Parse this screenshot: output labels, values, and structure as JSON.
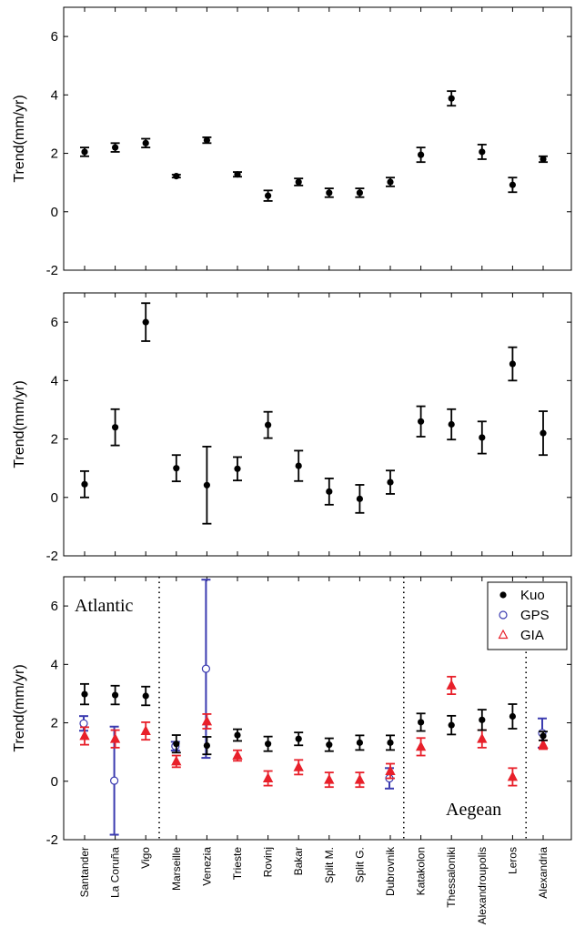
{
  "chart_data": [
    {
      "type": "scatter",
      "ylabel": "Trend(mm/yr)",
      "ylim": [
        -2,
        7
      ],
      "yticks": [
        -2,
        0,
        2,
        4,
        6
      ],
      "grid": false,
      "categories": [
        "Santander",
        "La Coruña",
        "Vigo",
        "Marseille",
        "Venezia",
        "Trieste",
        "Rovinj",
        "Bakar",
        "Split M.",
        "Split G.",
        "Dubrovnik",
        "Katakolon",
        "Thessaloniki",
        "Alexandroupolis",
        "Leros",
        "Alexandria"
      ],
      "series": [
        {
          "values": [
            2.05,
            2.2,
            2.35,
            1.22,
            2.45,
            1.28,
            0.55,
            1.02,
            0.65,
            0.65,
            1.02,
            1.95,
            3.88,
            2.05,
            0.92,
            1.8
          ],
          "errors": [
            0.15,
            0.15,
            0.15,
            0.05,
            0.1,
            0.08,
            0.18,
            0.12,
            0.15,
            0.15,
            0.15,
            0.25,
            0.25,
            0.25,
            0.25,
            0.1
          ]
        }
      ]
    },
    {
      "type": "scatter",
      "ylabel": "Trend(mm/yr)",
      "ylim": [
        -2,
        7
      ],
      "yticks": [
        -2,
        0,
        2,
        4,
        6
      ],
      "grid": false,
      "categories": [
        "Santander",
        "La Coruña",
        "Vigo",
        "Marseille",
        "Venezia",
        "Trieste",
        "Rovinj",
        "Bakar",
        "Split M.",
        "Split G.",
        "Dubrovnik",
        "Katakolon",
        "Thessaloniki",
        "Alexandroupolis",
        "Leros",
        "Alexandria"
      ],
      "series": [
        {
          "values": [
            0.45,
            2.4,
            6.0,
            1.0,
            0.42,
            0.98,
            2.48,
            1.08,
            0.2,
            -0.05,
            0.52,
            2.6,
            2.5,
            2.05,
            4.57,
            2.2
          ],
          "errors": [
            0.45,
            0.62,
            0.65,
            0.45,
            1.32,
            0.4,
            0.45,
            0.52,
            0.45,
            0.48,
            0.4,
            0.52,
            0.52,
            0.55,
            0.57,
            0.75
          ]
        }
      ]
    },
    {
      "type": "scatter",
      "ylabel": "Trend(mm/yr)",
      "ylim": [
        -2,
        7
      ],
      "yticks": [
        -2,
        0,
        2,
        4,
        6
      ],
      "grid": false,
      "categories": [
        "Santander",
        "La Coruña",
        "Vigo",
        "Marseille",
        "Venezia",
        "Trieste",
        "Rovinj",
        "Bakar",
        "Split M.",
        "Split G.",
        "Dubrovnik",
        "Katakolon",
        "Thessaloniki",
        "Alexandroupolis",
        "Leros",
        "Alexandria"
      ],
      "legend": {
        "position": "top-right",
        "entries": [
          "Kuo",
          "GPS",
          "GIA"
        ]
      },
      "annotations": [
        "Atlantic",
        "Aegean"
      ],
      "region_dividers_after": [
        "Vigo",
        "Dubrovnik",
        "Leros"
      ],
      "series": [
        {
          "name": "Kuo",
          "color": "#000000",
          "marker": "dot",
          "values": [
            2.98,
            2.95,
            2.92,
            1.28,
            1.22,
            1.58,
            1.28,
            1.45,
            1.25,
            1.32,
            1.32,
            2.02,
            1.92,
            2.1,
            2.22,
            1.55
          ],
          "errors": [
            0.35,
            0.32,
            0.32,
            0.3,
            0.3,
            0.2,
            0.25,
            0.22,
            0.22,
            0.25,
            0.25,
            0.3,
            0.32,
            0.35,
            0.42,
            0.15
          ]
        },
        {
          "name": "GPS",
          "color": "#3b3bb0",
          "marker": "circle",
          "values": [
            1.98,
            0.02,
            null,
            1.2,
            3.85,
            null,
            null,
            null,
            null,
            null,
            0.1,
            null,
            null,
            null,
            null,
            1.65
          ],
          "errors": [
            0.25,
            1.85,
            null,
            0.15,
            3.05,
            null,
            null,
            null,
            null,
            null,
            0.35,
            null,
            null,
            null,
            null,
            0.5
          ]
        },
        {
          "name": "GIA",
          "color": "#e8202a",
          "marker": "triangle",
          "values": [
            1.55,
            1.45,
            1.72,
            0.68,
            2.05,
            0.88,
            0.1,
            0.48,
            0.05,
            0.05,
            0.35,
            1.18,
            3.28,
            1.45,
            0.15,
            1.25
          ],
          "errors": [
            0.3,
            0.3,
            0.3,
            0.2,
            0.25,
            0.18,
            0.25,
            0.25,
            0.25,
            0.25,
            0.25,
            0.3,
            0.3,
            0.3,
            0.3,
            0.15
          ]
        }
      ]
    }
  ]
}
